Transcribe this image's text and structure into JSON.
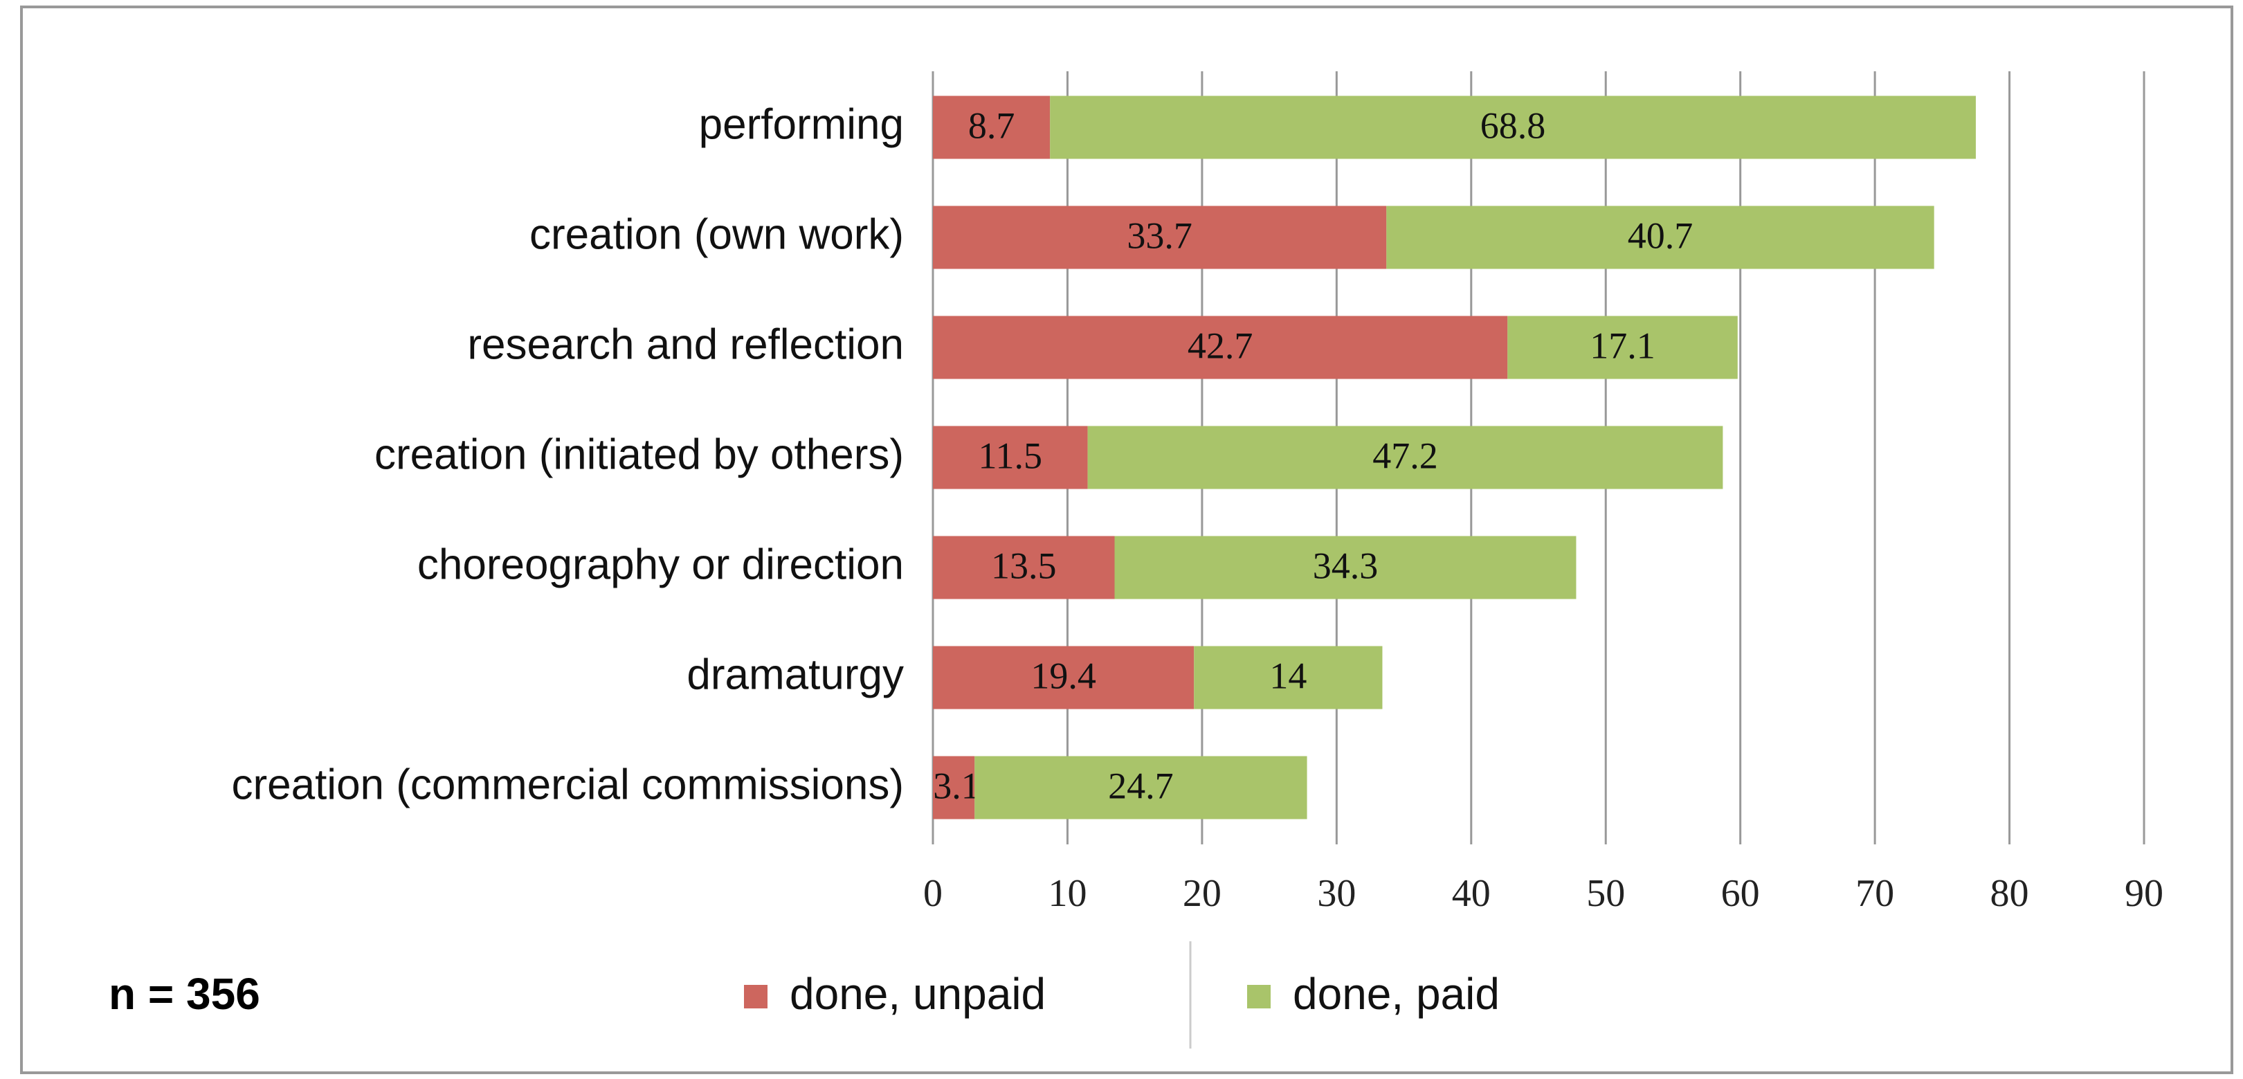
{
  "chart_data": {
    "type": "stacked_barh",
    "categories": [
      "performing",
      "creation (own work)",
      "research and reflection",
      "creation (initiated by others)",
      "choreography or direction",
      "dramaturgy",
      "creation (commercial commissions)"
    ],
    "series": [
      {
        "name": "done, unpaid",
        "color": "#cd665e",
        "values": [
          8.7,
          33.7,
          42.7,
          11.5,
          13.5,
          19.4,
          3.1
        ]
      },
      {
        "name": "done, paid",
        "color": "#a9c46a",
        "values": [
          68.8,
          40.7,
          17.1,
          47.2,
          34.3,
          14,
          24.7
        ]
      }
    ],
    "xlim": [
      0,
      90
    ],
    "xticks": [
      0,
      10,
      20,
      30,
      40,
      50,
      60,
      70,
      80,
      90
    ],
    "grid": true,
    "annotation": "n = 356"
  }
}
